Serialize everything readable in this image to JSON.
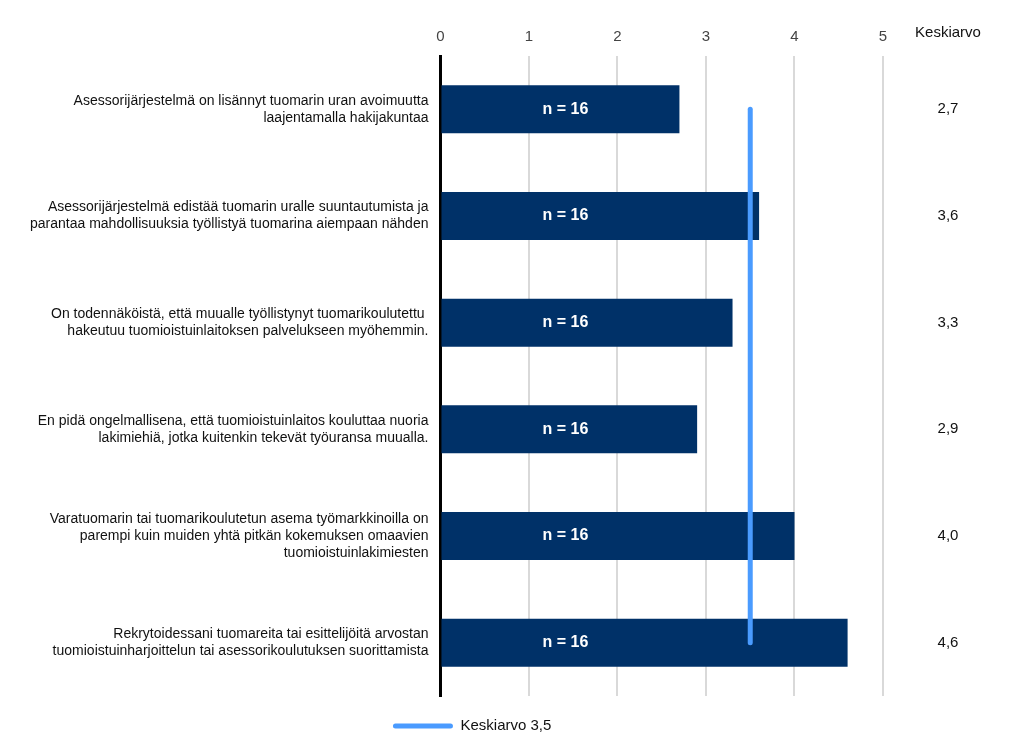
{
  "chart_data": {
    "type": "bar",
    "orientation": "horizontal",
    "categories": [
      "Asessorijärjestelmä on lisännyt tuomarin uran avoimuutta laajentamalla hakijakuntaa",
      "Asessorijärjestelmä edistää tuomarin uralle suuntautumista ja parantaa mahdollisuuksia työllistyä tuomarina aiempaan nähden",
      "On todennäköistä, että muualle työllistynyt tuomarikoulutettu  hakeutuu tuomioistuinlaitoksen palvelukseen myöhemmin.",
      "En pidä ongelmallisena, että tuomioistuinlaitos kouluttaa nuoria lakimiehiä, jotka kuitenkin tekevät työuransa muualla.",
      "Varatuomarin tai tuomarikoulutetun asema työmarkkinoilla on parempi kuin muiden yhtä pitkän kokemuksen omaavien tuomioistuinlakimiesten",
      "Rekrytoidessani tuomareita tai esittelijöitä arvostan tuomioistuinharjoittelun tai asessorikoulutuksen suorittamista"
    ],
    "values": [
      2.7,
      3.6,
      3.3,
      2.9,
      4.0,
      4.6
    ],
    "value_labels": [
      "2,7",
      "3,6",
      "3,3",
      "2,9",
      "4,0",
      "4,6"
    ],
    "color": "#003168",
    "xlim": [
      0,
      5
    ],
    "xticks": [
      0,
      1,
      2,
      3,
      4,
      5
    ],
    "grid": "x",
    "ref_lines": [
      {
        "axis": "x",
        "value": 3.5,
        "label": "Keskiarvo 3,5",
        "color": "#4a9bff"
      }
    ],
    "legend": "bottom",
    "annotations": [
      "Keskiarvo",
      "n = 16",
      "n = 16",
      "n = 16",
      "n = 16",
      "n = 16",
      "n = 16"
    ]
  }
}
